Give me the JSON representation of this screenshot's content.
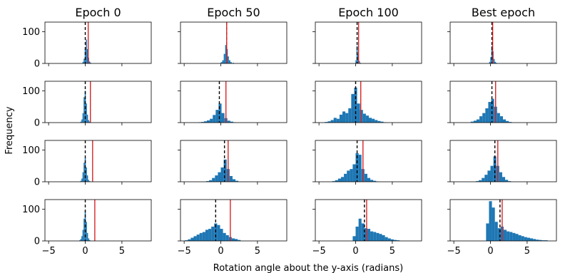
{
  "chart_data": {
    "type": "bar",
    "layout": "4x4 grid of histograms, shared x-axis per column",
    "column_titles": [
      "Epoch 0",
      "Epoch 50",
      "Epoch 100",
      "Best epoch"
    ],
    "ylabel": "Frequency",
    "xlabel": "Rotation angle about the y-axis (radians)",
    "xlim": [
      -5.5,
      9
    ],
    "ylim": [
      0,
      130
    ],
    "xticks": [
      -5,
      0,
      5
    ],
    "yticks": [
      0,
      100
    ],
    "bar_color": "#1f77b4",
    "reference_line_color": "#d62728",
    "mean_line_style": "black dashed",
    "grid": false,
    "panels": [
      [
        {
          "dashed": 0.0,
          "red": 0.4,
          "bins": [
            [
              -0.3,
              5
            ],
            [
              -0.15,
              15
            ],
            [
              0,
              45
            ],
            [
              0.15,
              75
            ],
            [
              0.3,
              45
            ],
            [
              0.45,
              18
            ],
            [
              0.6,
              6
            ],
            [
              0.75,
              2
            ]
          ]
        },
        {
          "dashed": 0.8,
          "red": 0.8,
          "bins": [
            [
              0.1,
              4
            ],
            [
              0.3,
              10
            ],
            [
              0.5,
              30
            ],
            [
              0.7,
              58
            ],
            [
              0.85,
              45
            ],
            [
              1.0,
              22
            ],
            [
              1.2,
              10
            ],
            [
              1.4,
              4
            ],
            [
              1.7,
              2
            ]
          ]
        },
        {
          "dashed": 0.2,
          "red": 0.4,
          "bins": [
            [
              0.05,
              10
            ],
            [
              0.2,
              55
            ],
            [
              0.35,
              30
            ],
            [
              0.5,
              8
            ],
            [
              0.65,
              2
            ]
          ]
        },
        {
          "dashed": 0.2,
          "red": 0.3,
          "bins": [
            [
              -0.1,
              5
            ],
            [
              0.05,
              20
            ],
            [
              0.2,
              55
            ],
            [
              0.35,
              38
            ],
            [
              0.5,
              14
            ],
            [
              0.65,
              5
            ],
            [
              0.8,
              2
            ]
          ]
        }
      ],
      [
        {
          "dashed": 0.0,
          "red": 0.7,
          "bins": [
            [
              -0.6,
              3
            ],
            [
              -0.45,
              10
            ],
            [
              -0.3,
              30
            ],
            [
              -0.15,
              80
            ],
            [
              0,
              100
            ],
            [
              0.15,
              60
            ],
            [
              0.3,
              25
            ],
            [
              0.45,
              8
            ],
            [
              0.6,
              3
            ]
          ]
        },
        {
          "dashed": -0.2,
          "red": 0.7,
          "bins": [
            [
              -2.9,
              1
            ],
            [
              -2.5,
              2
            ],
            [
              -2.1,
              4
            ],
            [
              -1.7,
              7
            ],
            [
              -1.3,
              12
            ],
            [
              -0.9,
              24
            ],
            [
              -0.5,
              40
            ],
            [
              -0.1,
              60
            ],
            [
              0.3,
              30
            ],
            [
              0.7,
              14
            ],
            [
              1.1,
              6
            ],
            [
              1.5,
              3
            ],
            [
              1.9,
              1
            ]
          ]
        },
        {
          "dashed": 0.0,
          "red": 0.7,
          "bins": [
            [
              -4.0,
              2
            ],
            [
              -3.6,
              4
            ],
            [
              -3.2,
              8
            ],
            [
              -2.8,
              15
            ],
            [
              -2.4,
              12
            ],
            [
              -2.0,
              25
            ],
            [
              -1.6,
              35
            ],
            [
              -1.2,
              30
            ],
            [
              -0.8,
              45
            ],
            [
              -0.4,
              90
            ],
            [
              0,
              110
            ],
            [
              0.4,
              60
            ],
            [
              0.8,
              40
            ],
            [
              1.2,
              28
            ],
            [
              1.6,
              22
            ],
            [
              2.0,
              15
            ],
            [
              2.4,
              12
            ],
            [
              2.8,
              8
            ],
            [
              3.2,
              5
            ],
            [
              3.6,
              3
            ],
            [
              4.0,
              1
            ]
          ]
        },
        {
          "dashed": 0.2,
          "red": 0.7,
          "bins": [
            [
              -2.5,
              3
            ],
            [
              -2.1,
              6
            ],
            [
              -1.7,
              10
            ],
            [
              -1.3,
              20
            ],
            [
              -0.9,
              30
            ],
            [
              -0.5,
              45
            ],
            [
              -0.1,
              65
            ],
            [
              0.3,
              75
            ],
            [
              0.7,
              50
            ],
            [
              1.1,
              30
            ],
            [
              1.5,
              20
            ],
            [
              1.9,
              10
            ],
            [
              2.3,
              5
            ],
            [
              2.7,
              2
            ]
          ]
        }
      ],
      [
        {
          "dashed": 0.0,
          "red": 1.0,
          "bins": [
            [
              -0.6,
              3
            ],
            [
              -0.45,
              10
            ],
            [
              -0.3,
              30
            ],
            [
              -0.15,
              60
            ],
            [
              0,
              75
            ],
            [
              0.15,
              45
            ],
            [
              0.3,
              20
            ],
            [
              0.45,
              6
            ],
            [
              0.6,
              2
            ]
          ]
        },
        {
          "dashed": 0.5,
          "red": 1.0,
          "bins": [
            [
              -1.8,
              2
            ],
            [
              -1.4,
              5
            ],
            [
              -1.0,
              12
            ],
            [
              -0.6,
              20
            ],
            [
              -0.2,
              30
            ],
            [
              0.2,
              45
            ],
            [
              0.6,
              70
            ],
            [
              1.0,
              40
            ],
            [
              1.4,
              18
            ],
            [
              1.8,
              8
            ],
            [
              2.2,
              3
            ]
          ]
        },
        {
          "dashed": 0.2,
          "red": 1.0,
          "bins": [
            [
              -3.0,
              2
            ],
            [
              -2.6,
              5
            ],
            [
              -2.2,
              10
            ],
            [
              -1.8,
              15
            ],
            [
              -1.4,
              25
            ],
            [
              -1.0,
              35
            ],
            [
              -0.6,
              40
            ],
            [
              -0.2,
              55
            ],
            [
              0.2,
              90
            ],
            [
              0.6,
              85
            ],
            [
              1.0,
              40
            ],
            [
              1.4,
              25
            ],
            [
              1.8,
              12
            ],
            [
              2.2,
              6
            ],
            [
              2.6,
              3
            ],
            [
              3.0,
              1
            ]
          ]
        },
        {
          "dashed": 0.6,
          "red": 1.0,
          "bins": [
            [
              -1.8,
              2
            ],
            [
              -1.4,
              5
            ],
            [
              -1.0,
              12
            ],
            [
              -0.6,
              22
            ],
            [
              -0.2,
              35
            ],
            [
              0.2,
              50
            ],
            [
              0.6,
              80
            ],
            [
              1.0,
              50
            ],
            [
              1.4,
              30
            ],
            [
              1.8,
              15
            ],
            [
              2.2,
              6
            ],
            [
              2.6,
              2
            ]
          ]
        }
      ],
      [
        {
          "dashed": 0.0,
          "red": 1.3,
          "bins": [
            [
              -0.75,
              2
            ],
            [
              -0.6,
              6
            ],
            [
              -0.45,
              15
            ],
            [
              -0.3,
              35
            ],
            [
              -0.15,
              70
            ],
            [
              0,
              95
            ],
            [
              0.15,
              60
            ],
            [
              0.3,
              25
            ],
            [
              0.45,
              8
            ],
            [
              0.6,
              3
            ]
          ]
        },
        {
          "dashed": -0.7,
          "red": 1.3,
          "bins": [
            [
              -4.7,
              2
            ],
            [
              -4.3,
              5
            ],
            [
              -3.9,
              10
            ],
            [
              -3.5,
              15
            ],
            [
              -3.1,
              20
            ],
            [
              -2.7,
              25
            ],
            [
              -2.3,
              28
            ],
            [
              -1.9,
              35
            ],
            [
              -1.5,
              38
            ],
            [
              -1.1,
              45
            ],
            [
              -0.7,
              55
            ],
            [
              -0.3,
              50
            ],
            [
              0.1,
              38
            ],
            [
              0.5,
              25
            ],
            [
              0.9,
              18
            ],
            [
              1.3,
              12
            ],
            [
              1.7,
              8
            ],
            [
              2.1,
              6
            ],
            [
              2.5,
              3
            ]
          ]
        },
        {
          "dashed": 1.2,
          "red": 1.5,
          "bins": [
            [
              -0.2,
              15
            ],
            [
              0.2,
              45
            ],
            [
              0.6,
              70
            ],
            [
              1.0,
              55
            ],
            [
              1.4,
              40
            ],
            [
              1.8,
              38
            ],
            [
              2.2,
              30
            ],
            [
              2.6,
              28
            ],
            [
              3.0,
              25
            ],
            [
              3.4,
              22
            ],
            [
              3.8,
              18
            ],
            [
              4.2,
              12
            ],
            [
              4.6,
              8
            ],
            [
              5.0,
              5
            ],
            [
              5.4,
              3
            ],
            [
              5.8,
              2
            ]
          ]
        },
        {
          "dashed": 1.3,
          "red": 1.6,
          "bins": [
            [
              -0.4,
              55
            ],
            [
              0,
              125
            ],
            [
              0.4,
              105
            ],
            [
              0.8,
              60
            ],
            [
              1.2,
              40
            ],
            [
              1.6,
              45
            ],
            [
              2.0,
              35
            ],
            [
              2.4,
              30
            ],
            [
              2.8,
              28
            ],
            [
              3.2,
              25
            ],
            [
              3.6,
              22
            ],
            [
              4.0,
              18
            ],
            [
              4.4,
              15
            ],
            [
              4.8,
              12
            ],
            [
              5.2,
              10
            ],
            [
              5.6,
              8
            ],
            [
              6.0,
              6
            ],
            [
              6.4,
              4
            ],
            [
              6.8,
              3
            ],
            [
              7.2,
              2
            ],
            [
              7.6,
              2
            ]
          ]
        }
      ]
    ]
  }
}
